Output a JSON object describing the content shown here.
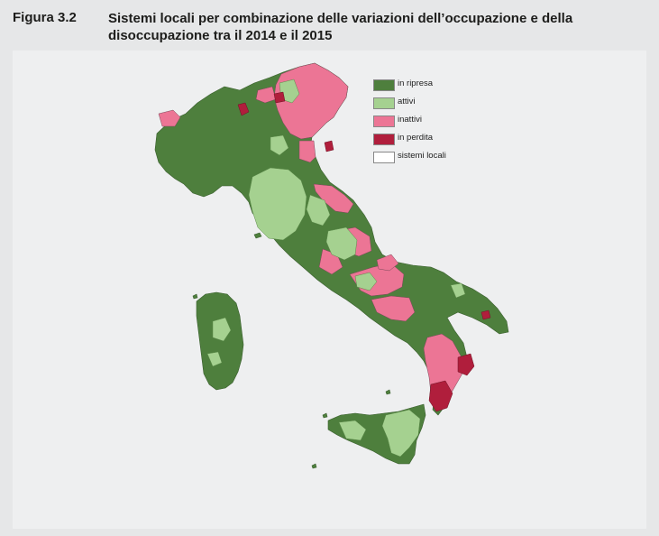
{
  "figure": {
    "label": "Figura 3.2",
    "title": "Sistemi locali per combinazione delle variazioni dell’occupazione e della disoccupazione tra il 2014 e il 2015"
  },
  "legend": [
    {
      "label": "in ripresa",
      "color": "#4e7f3d"
    },
    {
      "label": "attivi",
      "color": "#a5d190"
    },
    {
      "label": "inattivi",
      "color": "#ec7595"
    },
    {
      "label": "in perdita",
      "color": "#b01e3c"
    },
    {
      "label": "sistemi locali",
      "color": "#ffffff"
    }
  ],
  "colors": {
    "background": "#e6e7e8",
    "panel": "#eeeff0",
    "region_border": "#3d6030"
  }
}
